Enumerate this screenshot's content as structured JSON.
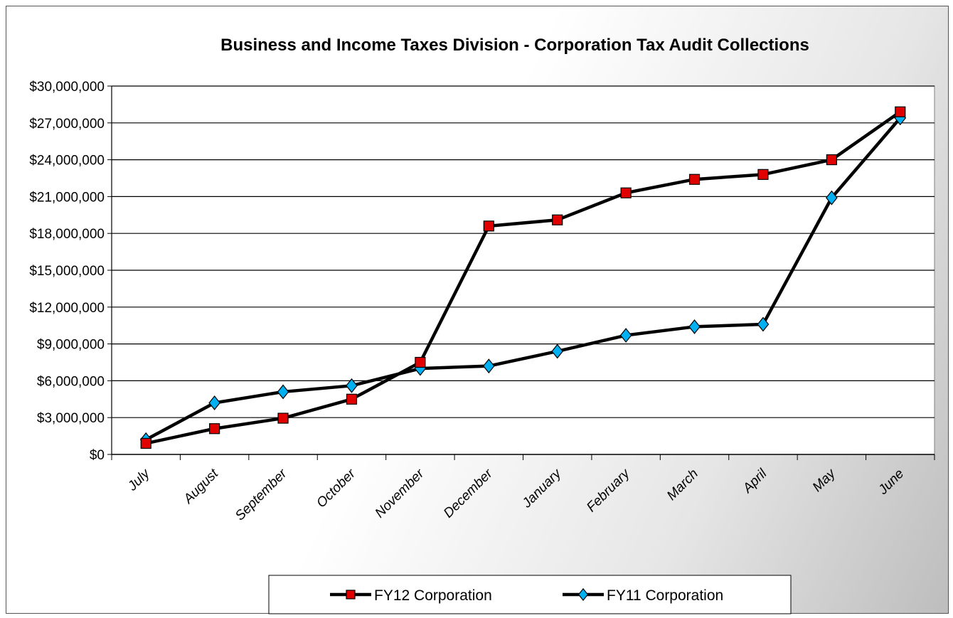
{
  "chart_data": {
    "type": "line",
    "title": "Business and Income Taxes Division - Corporation Tax Audit Collections",
    "xlabel": "",
    "ylabel": "",
    "categories": [
      "July",
      "August",
      "September",
      "October",
      "November",
      "December",
      "January",
      "February",
      "March",
      "April",
      "May",
      "June"
    ],
    "ylim": [
      0,
      30000000
    ],
    "ytick_labels": [
      "$0",
      "$3,000,000",
      "$6,000,000",
      "$9,000,000",
      "$12,000,000",
      "$15,000,000",
      "$18,000,000",
      "$21,000,000",
      "$24,000,000",
      "$27,000,000",
      "$30,000,000"
    ],
    "grid": true,
    "legend_position": "bottom",
    "series": [
      {
        "name": "FY12 Corporation",
        "marker": "square",
        "marker_color": "#e00000",
        "line_color": "#000000",
        "values": [
          900000,
          2100000,
          2950000,
          4500000,
          7500000,
          18600000,
          19100000,
          21300000,
          22400000,
          22800000,
          24000000,
          27900000
        ]
      },
      {
        "name": "FY11 Corporation",
        "marker": "diamond",
        "marker_color": "#00b0f0",
        "line_color": "#000000",
        "values": [
          1200000,
          4200000,
          5100000,
          5600000,
          7000000,
          7200000,
          8400000,
          9700000,
          10400000,
          10600000,
          20900000,
          27400000
        ]
      }
    ]
  }
}
